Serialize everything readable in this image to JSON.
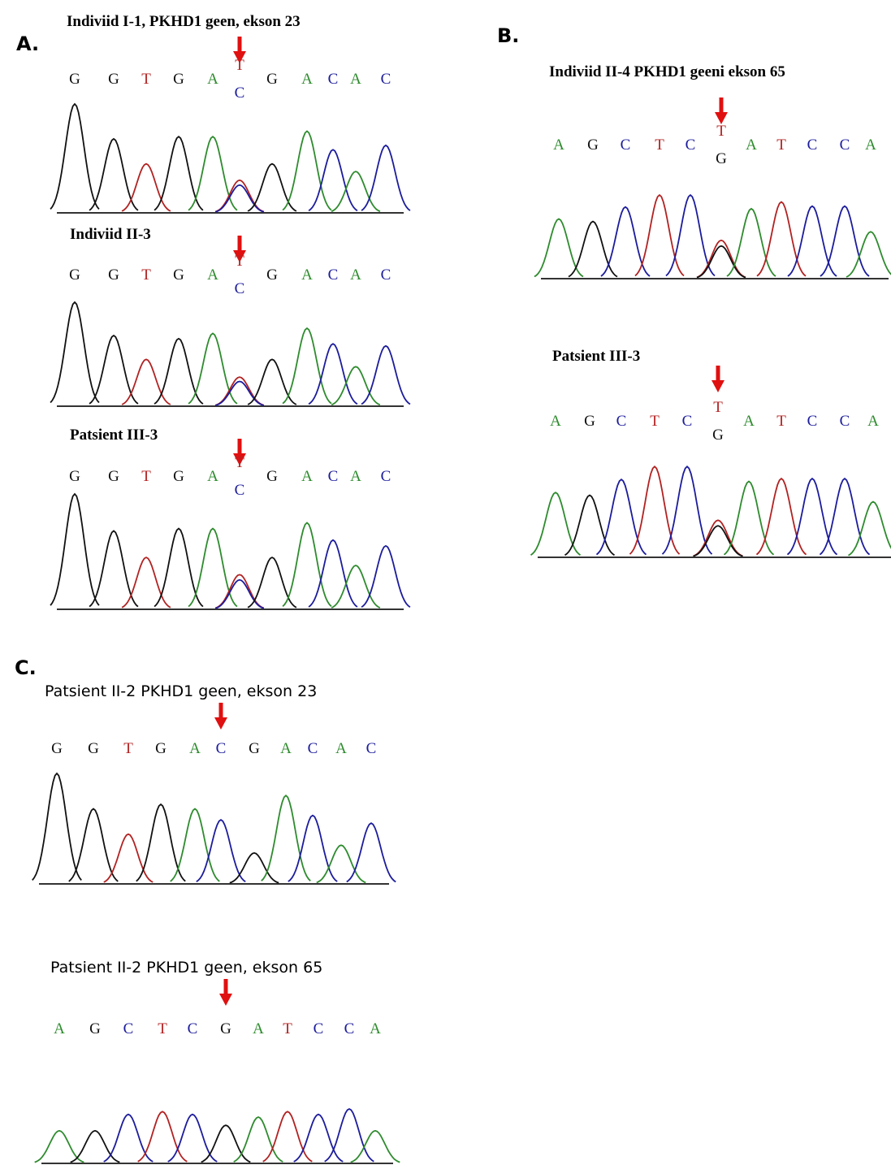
{
  "panels": [
    {
      "label": "A.",
      "tracks": [
        {
          "title": "Indiviid I-1, PKHD1 geen, ekson 23",
          "bases": [
            "G",
            "G",
            "T",
            "G",
            "A",
            [
              "T",
              "C"
            ],
            "G",
            "A",
            "C",
            "A",
            "C"
          ]
        },
        {
          "title": "Indiviid II-3",
          "bases": [
            "G",
            "G",
            "T",
            "G",
            "A",
            [
              "T",
              "C"
            ],
            "G",
            "A",
            "C",
            "A",
            "C"
          ]
        },
        {
          "title": "Patsient III-3",
          "bases": [
            "G",
            "G",
            "T",
            "G",
            "A",
            [
              "T",
              "C"
            ],
            "G",
            "A",
            "C",
            "A",
            "C"
          ]
        }
      ]
    },
    {
      "label": "B.",
      "tracks": [
        {
          "title": "Indiviid II-4 PKHD1 geeni ekson 65",
          "bases": [
            "A",
            "G",
            "C",
            "T",
            "C",
            [
              "T",
              "G"
            ],
            "A",
            "T",
            "C",
            "C",
            "A"
          ]
        },
        {
          "title": "Patsient III-3",
          "bases": [
            "A",
            "G",
            "C",
            "T",
            "C",
            [
              "T",
              "G"
            ],
            "A",
            "T",
            "C",
            "C",
            "A"
          ]
        }
      ]
    },
    {
      "label": "C.",
      "tracks": [
        {
          "title": "Patsient II-2 PKHD1 geen, ekson 23",
          "bases": [
            "G",
            "G",
            "T",
            "G",
            "A",
            "C",
            "G",
            "A",
            "C",
            "A",
            "C"
          ]
        },
        {
          "title": "Patsient II-2 PKHD1 geen, ekson 65",
          "bases": [
            "A",
            "G",
            "C",
            "T",
            "C",
            "G",
            "A",
            "T",
            "C",
            "C",
            "A"
          ]
        }
      ]
    }
  ]
}
